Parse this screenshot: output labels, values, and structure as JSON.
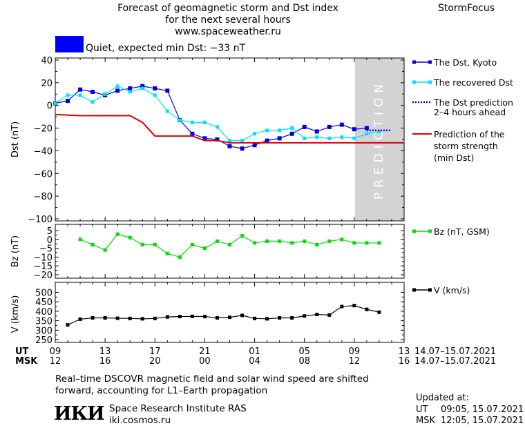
{
  "header": {
    "title_line1": "Forecast of geomagnetic storm and Dst index",
    "title_line2": "for the next several hours",
    "website": "www.spaceweather.ru",
    "brand": "StormFocus",
    "status_text": "Quiet, expected min Dst: −33 nT",
    "status_color": "#0000ff"
  },
  "colors": {
    "dst_kyoto": "#0000dd",
    "dst_recovered": "#00e0ff",
    "prediction": "#dd0000",
    "bz": "#00dd00",
    "speed": "#000000",
    "prediction_band": "#d3d3d3"
  },
  "legend": {
    "dst_kyoto": "The Dst, Kyoto",
    "dst_recovered": "The recovered Dst",
    "dst_prediction_l1": "The Dst prediction",
    "dst_prediction_l2": "2–4 hours ahead",
    "storm_l1": "Prediction of the",
    "storm_l2": "storm strength",
    "storm_l3": "(min Dst)",
    "bz": "Bz (nT, GSM)",
    "speed": "V (km/s)"
  },
  "prediction_band_label": "PREDICTION",
  "axes": {
    "ut_label": "UT",
    "msk_label": "MSK",
    "ut_ticks": [
      "09",
      "13",
      "17",
      "21",
      "01",
      "05",
      "09",
      "13"
    ],
    "msk_ticks": [
      "12",
      "16",
      "20",
      "00",
      "04",
      "08",
      "12",
      "16"
    ],
    "date_range_ut": "14.07–15.07.2021",
    "date_range_msk": "14.07–15.07.2021"
  },
  "footer": {
    "note_l1": "Real–time DSCOVR magnetic field and solar wind speed are shifted",
    "note_l2": "forward, accounting for L1–Earth propagation",
    "logo_text": "ИКИ",
    "institute": "Space Research Institute RAS",
    "site": "iki.cosmos.ru",
    "updated_label": "Updated at:",
    "updated_ut_label": "UT",
    "updated_ut": "09:05, 15.07.2021",
    "updated_msk_label": "MSK",
    "updated_msk": "12:05, 15.07.2021"
  },
  "chart_data": [
    {
      "type": "line",
      "ylabel": "Dst (nT)",
      "ylim": [
        -100,
        40
      ],
      "yticks": [
        "40",
        "20",
        "0",
        "−20",
        "−40",
        "−60",
        "−80",
        "−100"
      ],
      "ytick_values": [
        40,
        20,
        0,
        -20,
        -40,
        -60,
        -80,
        -100
      ],
      "xlim_hours_ut": [
        9,
        37
      ],
      "prediction_band_hours": [
        34,
        37
      ],
      "series": [
        {
          "name": "The Dst, Kyoto",
          "x": [
            9,
            10,
            11,
            12,
            13,
            14,
            15,
            16,
            17,
            18,
            19,
            20,
            21,
            22,
            23,
            24,
            25,
            26,
            27,
            28,
            29,
            30,
            31,
            32,
            33,
            34
          ],
          "y": [
            2,
            4,
            14,
            12,
            9,
            13,
            15,
            17,
            15,
            13,
            -13,
            -25,
            -29,
            -30,
            -36,
            -38,
            -35,
            -31,
            -29,
            -25,
            -19,
            -23,
            -19,
            -17,
            -21,
            -20
          ]
        },
        {
          "name": "The recovered Dst",
          "x": [
            9,
            10,
            11,
            12,
            13,
            14,
            15,
            16,
            17,
            18,
            19,
            20,
            21,
            22,
            23,
            24,
            25,
            26,
            27,
            28,
            29,
            30,
            31,
            32,
            33,
            34,
            35
          ],
          "y": [
            2,
            9,
            9,
            3,
            10,
            17,
            12,
            15,
            9,
            -5,
            -13,
            -15,
            -15,
            -19,
            -31,
            -31,
            -25,
            -22,
            -22,
            -20,
            -29,
            -28,
            -29,
            -28,
            -29,
            -25,
            -23
          ]
        },
        {
          "name": "The Dst prediction 2–4 hours ahead",
          "x": [
            34,
            35,
            36
          ],
          "y": [
            -22,
            -22,
            -22
          ]
        },
        {
          "name": "Prediction of the storm strength (min Dst)",
          "x": [
            9,
            11,
            12,
            13,
            14,
            15,
            16,
            17,
            18,
            19,
            20,
            21,
            22,
            23,
            24,
            25,
            26,
            27,
            28,
            29,
            30,
            31,
            32,
            33,
            34,
            35,
            36,
            37
          ],
          "y": [
            -8,
            -9,
            -9,
            -9,
            -9,
            -9,
            -15,
            -27,
            -27,
            -27,
            -27,
            -31,
            -31,
            -33,
            -33,
            -33,
            -33,
            -33,
            -33,
            -33,
            -33,
            -33,
            -33,
            -33,
            -33,
            -33,
            -33,
            -33
          ]
        }
      ]
    },
    {
      "type": "line",
      "ylabel": "Bz (nT)",
      "ylim": [
        -20,
        5
      ],
      "yticks": [
        "5",
        "0",
        "−5",
        "−10",
        "−15",
        "−20"
      ],
      "ytick_values": [
        5,
        0,
        -5,
        -10,
        -15,
        -20
      ],
      "series": [
        {
          "name": "Bz (nT, GSM)",
          "x": [
            11,
            12,
            13,
            14,
            15,
            16,
            17,
            18,
            19,
            20,
            21,
            22,
            23,
            24,
            25,
            26,
            27,
            28,
            29,
            30,
            31,
            32,
            33,
            34,
            35
          ],
          "y": [
            0,
            -3,
            -6,
            3,
            1,
            -3,
            -3,
            -8,
            -10,
            -3,
            -5,
            -1,
            -3,
            2,
            -2,
            -1,
            -1,
            -2,
            -1,
            -3,
            -1,
            0,
            -2,
            -2,
            -2
          ]
        }
      ]
    },
    {
      "type": "line",
      "ylabel": "V (km/s)",
      "ylim": [
        250,
        520
      ],
      "yticks": [
        "500",
        "450",
        "400",
        "350",
        "300",
        "250"
      ],
      "ytick_values": [
        500,
        450,
        400,
        350,
        300,
        250
      ],
      "series": [
        {
          "name": "V (km/s)",
          "x": [
            10,
            11,
            12,
            13,
            14,
            15,
            16,
            17,
            18,
            19,
            20,
            21,
            22,
            23,
            24,
            25,
            26,
            27,
            28,
            29,
            30,
            31,
            32,
            33,
            34,
            35
          ],
          "y": [
            328,
            358,
            365,
            365,
            363,
            362,
            360,
            362,
            370,
            372,
            373,
            372,
            365,
            368,
            378,
            362,
            360,
            365,
            365,
            375,
            383,
            380,
            425,
            430,
            410,
            395
          ]
        }
      ]
    }
  ]
}
